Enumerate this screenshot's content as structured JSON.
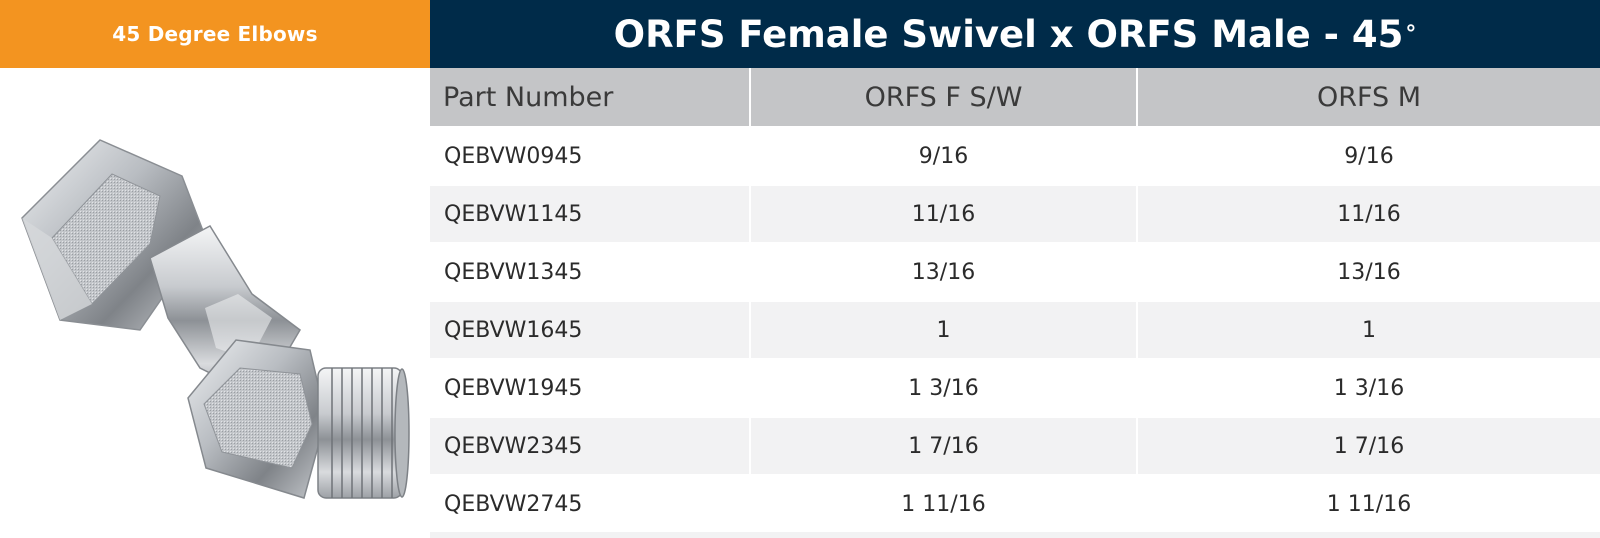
{
  "header": {
    "category": "45 Degree Elbows",
    "title": "ORFS Female Swivel x ORFS Male - 45",
    "title_degree": "°"
  },
  "colors": {
    "category_bg": "#f39420",
    "title_bg": "#002b49",
    "header_row_bg": "#c4c5c7",
    "alt_row_bg": "#f2f2f3"
  },
  "product_image": {
    "icon": "orfs-45-degree-elbow-fitting"
  },
  "table": {
    "columns": [
      "Part Number",
      "ORFS F S/W",
      "ORFS M"
    ],
    "rows": [
      [
        "QEBVW0945",
        "9/16",
        "9/16"
      ],
      [
        "QEBVW1145",
        "11/16",
        "11/16"
      ],
      [
        "QEBVW1345",
        "13/16",
        "13/16"
      ],
      [
        "QEBVW1645",
        "1",
        "1"
      ],
      [
        "QEBVW1945",
        "1 3/16",
        "1 3/16"
      ],
      [
        "QEBVW2345",
        "1 7/16",
        "1 7/16"
      ],
      [
        "QEBVW2745",
        "1 11/16",
        "1 11/16"
      ]
    ]
  }
}
